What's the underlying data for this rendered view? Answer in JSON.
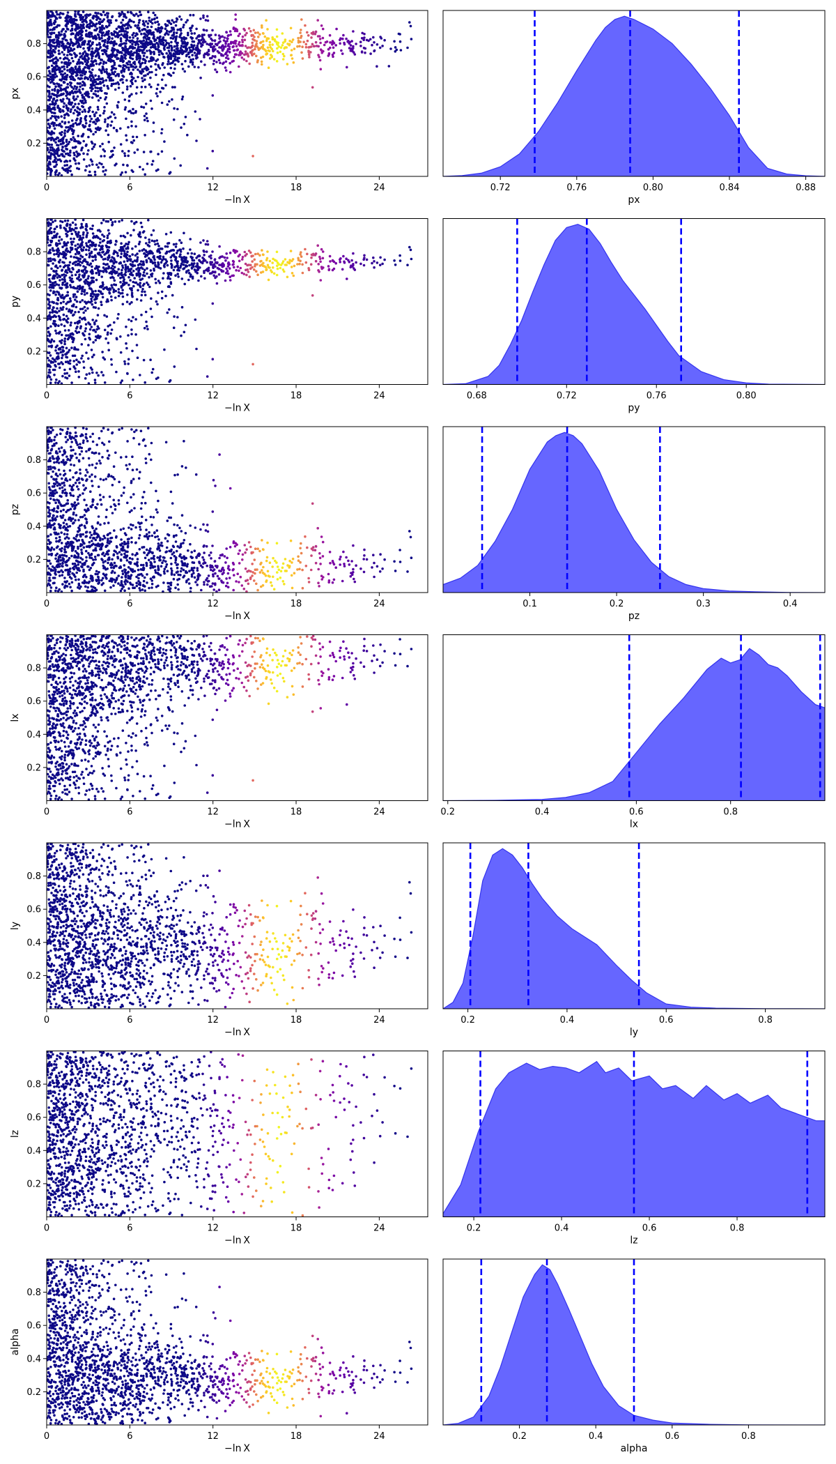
{
  "figure": {
    "trace_xlabel": "−ln X",
    "trace_xticks": [
      "0",
      "6",
      "12",
      "18",
      "24"
    ],
    "trace_xtick_values": [
      0,
      6,
      12,
      18,
      24
    ],
    "trace_xlim": [
      0,
      27.5
    ],
    "trace_colormap": [
      "#0d0887",
      "#3b049a",
      "#6a00a8",
      "#9c179e",
      "#c33d80",
      "#e16462",
      "#f89441",
      "#fdc328",
      "#f0f921"
    ],
    "posterior_color": "#6666ff",
    "edge_color": "#3333ee",
    "quantile_line_color": "#0000ff"
  },
  "chart_data": [
    {
      "type": "scatter",
      "param": "px",
      "xlabel": "−ln X",
      "ylabel": "px",
      "ylim": [
        0,
        1
      ],
      "yticks": [
        0.2,
        0.4,
        0.6,
        0.8
      ],
      "ytick_labels": [
        "0.2",
        "0.4",
        "0.6",
        "0.8"
      ],
      "trace_converge": 0.79,
      "trace_final_spread": 0.05,
      "trace_color_peak": 16.5,
      "trace_tail": 0.7,
      "posterior": {
        "type": "area",
        "xlabel": "px",
        "xlim": [
          0.69,
          0.89
        ],
        "xticks": [
          0.72,
          0.76,
          0.8,
          0.84,
          0.88
        ],
        "xtick_labels": [
          "0.72",
          "0.76",
          "0.80",
          "0.84",
          "0.88"
        ],
        "peak": 0.785,
        "quantiles": [
          0.738,
          0.788,
          0.845
        ],
        "density_x": [
          0.69,
          0.7,
          0.71,
          0.72,
          0.73,
          0.74,
          0.75,
          0.76,
          0.77,
          0.775,
          0.78,
          0.785,
          0.79,
          0.795,
          0.8,
          0.81,
          0.82,
          0.83,
          0.84,
          0.85,
          0.86,
          0.87,
          0.88,
          0.89
        ],
        "density_y": [
          0.0,
          0.005,
          0.02,
          0.06,
          0.14,
          0.28,
          0.46,
          0.66,
          0.85,
          0.93,
          0.98,
          1.0,
          0.98,
          0.95,
          0.92,
          0.83,
          0.7,
          0.55,
          0.38,
          0.18,
          0.05,
          0.015,
          0.004,
          0.0
        ]
      }
    },
    {
      "type": "scatter",
      "param": "py",
      "xlabel": "−ln X",
      "ylabel": "py",
      "ylim": [
        0,
        1
      ],
      "yticks": [
        0.2,
        0.4,
        0.6,
        0.8
      ],
      "ytick_labels": [
        "0.2",
        "0.4",
        "0.6",
        "0.8"
      ],
      "trace_converge": 0.73,
      "trace_final_spread": 0.035,
      "trace_color_peak": 16.5,
      "trace_tail": 0.7,
      "posterior": {
        "type": "area",
        "xlabel": "py",
        "xlim": [
          0.665,
          0.835
        ],
        "xticks": [
          0.68,
          0.72,
          0.76,
          0.8
        ],
        "xtick_labels": [
          "0.68",
          "0.72",
          "0.76",
          "0.80"
        ],
        "peak": 0.724,
        "quantiles": [
          0.698,
          0.729,
          0.771
        ],
        "density_x": [
          0.665,
          0.675,
          0.685,
          0.69,
          0.695,
          0.7,
          0.705,
          0.71,
          0.715,
          0.72,
          0.725,
          0.73,
          0.735,
          0.74,
          0.745,
          0.75,
          0.755,
          0.76,
          0.765,
          0.77,
          0.78,
          0.79,
          0.8,
          0.81,
          0.835
        ],
        "density_y": [
          0.0,
          0.005,
          0.05,
          0.12,
          0.25,
          0.4,
          0.58,
          0.75,
          0.9,
          0.98,
          1.0,
          0.97,
          0.88,
          0.76,
          0.65,
          0.56,
          0.47,
          0.37,
          0.27,
          0.18,
          0.08,
          0.03,
          0.01,
          0.002,
          0.0
        ]
      }
    },
    {
      "type": "scatter",
      "param": "pz",
      "xlabel": "−ln X",
      "ylabel": "pz",
      "ylim": [
        0,
        1
      ],
      "yticks": [
        0.2,
        0.4,
        0.6,
        0.8
      ],
      "ytick_labels": [
        "0.2",
        "0.4",
        "0.6",
        "0.8"
      ],
      "trace_converge": 0.15,
      "trace_final_spread": 0.08,
      "trace_color_peak": 16.5,
      "trace_tail": 0.7,
      "posterior": {
        "type": "area",
        "xlabel": "pz",
        "xlim": [
          0.0,
          0.44
        ],
        "xticks": [
          0.1,
          0.2,
          0.3,
          0.4
        ],
        "xtick_labels": [
          "0.1",
          "0.2",
          "0.3",
          "0.4"
        ],
        "peak": 0.145,
        "quantiles": [
          0.045,
          0.143,
          0.25
        ],
        "density_x": [
          0.0,
          0.02,
          0.04,
          0.06,
          0.08,
          0.1,
          0.12,
          0.13,
          0.14,
          0.15,
          0.16,
          0.18,
          0.2,
          0.22,
          0.24,
          0.26,
          0.28,
          0.3,
          0.33,
          0.36,
          0.4,
          0.44
        ],
        "density_y": [
          0.05,
          0.09,
          0.17,
          0.32,
          0.52,
          0.77,
          0.94,
          0.98,
          1.0,
          0.98,
          0.93,
          0.76,
          0.52,
          0.33,
          0.19,
          0.1,
          0.05,
          0.025,
          0.01,
          0.005,
          0.001,
          0.0
        ]
      }
    },
    {
      "type": "scatter",
      "param": "lx",
      "xlabel": "−ln X",
      "ylabel": "lx",
      "ylim": [
        0,
        1
      ],
      "yticks": [
        0.2,
        0.4,
        0.6,
        0.8
      ],
      "ytick_labels": [
        "0.2",
        "0.4",
        "0.6",
        "0.8"
      ],
      "trace_converge": 0.84,
      "trace_final_spread": 0.1,
      "trace_color_peak": 16.5,
      "trace_tail": 0.7,
      "posterior": {
        "type": "area",
        "xlabel": "lx",
        "xlim": [
          0.19,
          1.0
        ],
        "xticks": [
          0.2,
          0.4,
          0.6,
          0.8
        ],
        "xtick_labels": [
          "0.2",
          "0.4",
          "0.6",
          "0.8"
        ],
        "peak": 0.84,
        "quantiles": [
          0.585,
          0.822,
          0.99
        ],
        "density_x": [
          0.19,
          0.3,
          0.4,
          0.45,
          0.5,
          0.55,
          0.6,
          0.65,
          0.7,
          0.75,
          0.78,
          0.8,
          0.82,
          0.84,
          0.86,
          0.88,
          0.9,
          0.92,
          0.95,
          0.98,
          1.0
        ],
        "density_y": [
          0.0,
          0.002,
          0.008,
          0.02,
          0.05,
          0.12,
          0.3,
          0.48,
          0.64,
          0.82,
          0.89,
          0.86,
          0.88,
          0.95,
          0.91,
          0.85,
          0.83,
          0.78,
          0.68,
          0.6,
          0.58
        ]
      }
    },
    {
      "type": "scatter",
      "param": "ly",
      "xlabel": "−ln X",
      "ylabel": "ly",
      "ylim": [
        0,
        1
      ],
      "yticks": [
        0.2,
        0.4,
        0.6,
        0.8
      ],
      "ytick_labels": [
        "0.2",
        "0.4",
        "0.6",
        "0.8"
      ],
      "trace_converge": 0.35,
      "trace_final_spread": 0.15,
      "trace_color_peak": 16.5,
      "trace_tail": 0.7,
      "posterior": {
        "type": "area",
        "xlabel": "ly",
        "xlim": [
          0.15,
          0.92
        ],
        "xticks": [
          0.2,
          0.4,
          0.6,
          0.8
        ],
        "xtick_labels": [
          "0.2",
          "0.4",
          "0.6",
          "0.8"
        ],
        "peak": 0.27,
        "quantiles": [
          0.205,
          0.322,
          0.545
        ],
        "density_x": [
          0.15,
          0.17,
          0.19,
          0.21,
          0.23,
          0.25,
          0.27,
          0.29,
          0.31,
          0.33,
          0.35,
          0.38,
          0.41,
          0.43,
          0.46,
          0.5,
          0.53,
          0.56,
          0.6,
          0.65,
          0.7,
          0.8,
          0.92
        ],
        "density_y": [
          0.0,
          0.04,
          0.16,
          0.45,
          0.8,
          0.96,
          1.0,
          0.96,
          0.88,
          0.78,
          0.69,
          0.58,
          0.5,
          0.46,
          0.4,
          0.27,
          0.18,
          0.1,
          0.03,
          0.01,
          0.004,
          0.001,
          0.0
        ]
      }
    },
    {
      "type": "scatter",
      "param": "lz",
      "xlabel": "−ln X",
      "ylabel": "lz",
      "ylim": [
        0,
        1
      ],
      "yticks": [
        0.2,
        0.4,
        0.6,
        0.8
      ],
      "ytick_labels": [
        "0.2",
        "0.4",
        "0.6",
        "0.8"
      ],
      "trace_converge": 0.6,
      "trace_final_spread": 0.4,
      "trace_color_peak": 16.5,
      "trace_tail": 0.7,
      "posterior": {
        "type": "area",
        "xlabel": "lz",
        "xlim": [
          0.13,
          1.0
        ],
        "xticks": [
          0.2,
          0.4,
          0.6,
          0.8
        ],
        "xtick_labels": [
          "0.2",
          "0.4",
          "0.6",
          "0.8"
        ],
        "peak": 0.48,
        "quantiles": [
          0.215,
          0.565,
          0.96
        ],
        "density_x": [
          0.13,
          0.17,
          0.21,
          0.25,
          0.28,
          0.32,
          0.35,
          0.38,
          0.41,
          0.44,
          0.48,
          0.5,
          0.53,
          0.56,
          0.6,
          0.63,
          0.66,
          0.7,
          0.73,
          0.77,
          0.8,
          0.83,
          0.87,
          0.9,
          0.95,
          0.98,
          1.0
        ],
        "density_y": [
          0.02,
          0.2,
          0.53,
          0.8,
          0.9,
          0.96,
          0.92,
          0.94,
          0.93,
          0.9,
          0.97,
          0.9,
          0.93,
          0.85,
          0.88,
          0.8,
          0.82,
          0.74,
          0.82,
          0.73,
          0.77,
          0.71,
          0.76,
          0.68,
          0.63,
          0.6,
          0.6
        ]
      }
    },
    {
      "type": "scatter",
      "param": "alpha",
      "xlabel": "−ln X",
      "ylabel": "alpha",
      "ylim": [
        0,
        1
      ],
      "yticks": [
        0.2,
        0.4,
        0.6,
        0.8
      ],
      "ytick_labels": [
        "0.2",
        "0.4",
        "0.6",
        "0.8"
      ],
      "trace_converge": 0.28,
      "trace_final_spread": 0.08,
      "trace_color_peak": 16.5,
      "trace_tail": 0.7,
      "posterior": {
        "type": "area",
        "xlabel": "alpha",
        "xlim": [
          0.0,
          1.0
        ],
        "xticks": [
          0.2,
          0.4,
          0.6,
          0.8
        ],
        "xtick_labels": [
          "0.2",
          "0.4",
          "0.6",
          "0.8"
        ],
        "peak": 0.26,
        "quantiles": [
          0.1,
          0.272,
          0.5
        ],
        "density_x": [
          0.0,
          0.04,
          0.08,
          0.12,
          0.15,
          0.18,
          0.21,
          0.24,
          0.26,
          0.28,
          0.3,
          0.33,
          0.36,
          0.39,
          0.42,
          0.46,
          0.5,
          0.55,
          0.6,
          0.7,
          0.8,
          1.0
        ],
        "density_y": [
          0.0,
          0.01,
          0.05,
          0.18,
          0.36,
          0.58,
          0.8,
          0.94,
          1.0,
          0.97,
          0.88,
          0.72,
          0.55,
          0.38,
          0.24,
          0.12,
          0.06,
          0.03,
          0.012,
          0.004,
          0.001,
          0.0
        ]
      }
    }
  ]
}
